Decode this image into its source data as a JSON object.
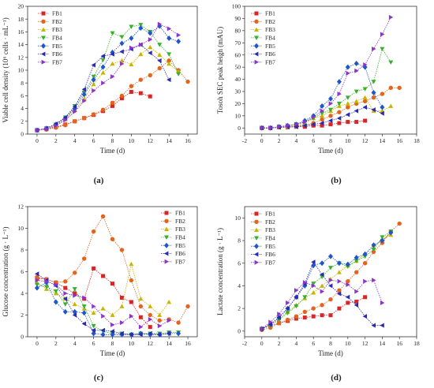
{
  "colors": {
    "FB1": "#d62728",
    "FB2": "#e2641e",
    "FB3": "#c8b400",
    "FB4": "#37b02c",
    "FB5": "#1f56c8",
    "FB6": "#2a2ab0",
    "FB7": "#8c34c9"
  },
  "markers": {
    "FB1": "square",
    "FB2": "circle",
    "FB3": "triangle-up",
    "FB4": "triangle-down",
    "FB5": "diamond",
    "FB6": "triangle-left",
    "FB7": "triangle-right"
  },
  "chart_data": [
    {
      "id": "a",
      "panel_label": "(a)",
      "type": "line",
      "xlabel": "Time (d)",
      "ylabel": "Viable cell density (10⁶ cells · mL⁻¹)",
      "xlim": [
        -1,
        17
      ],
      "ylim": [
        0,
        20
      ],
      "xticks": [
        0,
        2,
        4,
        6,
        8,
        10,
        12,
        14,
        16
      ],
      "yticks": [
        0,
        2,
        4,
        6,
        8,
        10,
        12,
        14,
        16,
        18,
        20
      ],
      "legend_position": "top-left",
      "series": [
        {
          "name": "FB1",
          "x": [
            0,
            1,
            2,
            3,
            4,
            5,
            6,
            7,
            8,
            9,
            10,
            11,
            12
          ],
          "y": [
            0.6,
            0.8,
            1.1,
            1.5,
            2.0,
            2.5,
            3.0,
            3.6,
            4.4,
            5.6,
            6.6,
            6.4,
            5.9
          ]
        },
        {
          "name": "FB2",
          "x": [
            0,
            1,
            2,
            3,
            4,
            5,
            6,
            7,
            8,
            9,
            10,
            11,
            12,
            13,
            14,
            15,
            16
          ],
          "y": [
            0.6,
            0.7,
            1.0,
            1.4,
            2.0,
            2.5,
            3.1,
            3.8,
            4.9,
            6.0,
            7.5,
            8.5,
            9.2,
            10.3,
            11.5,
            10.0,
            8.2
          ]
        },
        {
          "name": "FB3",
          "x": [
            0,
            1,
            2,
            3,
            4,
            5,
            6,
            7,
            8,
            9,
            10,
            11,
            12,
            13,
            14,
            15
          ],
          "y": [
            0.6,
            0.9,
            1.4,
            2.3,
            3.8,
            5.5,
            7.8,
            9.6,
            11.0,
            11.5,
            10.9,
            12.5,
            13.6,
            12.4,
            11.0,
            9.8
          ]
        },
        {
          "name": "FB4",
          "x": [
            0,
            1,
            2,
            3,
            4,
            5,
            6,
            7,
            8,
            9,
            10,
            11,
            12,
            13,
            14,
            15
          ],
          "y": [
            0.6,
            0.9,
            1.5,
            2.6,
            4.4,
            6.5,
            9.0,
            11.6,
            15.8,
            15.2,
            16.8,
            17.1,
            16.0,
            14.0,
            12.5,
            9.4
          ]
        },
        {
          "name": "FB5",
          "x": [
            0,
            1,
            2,
            3,
            4,
            5,
            6,
            7,
            8,
            9,
            10,
            11,
            12,
            13,
            14,
            15
          ],
          "y": [
            0.6,
            0.9,
            1.5,
            2.5,
            4.0,
            6.2,
            8.5,
            10.5,
            12.8,
            14.2,
            15.0,
            16.6,
            15.8,
            16.9,
            15.0,
            14.5
          ]
        },
        {
          "name": "FB6",
          "x": [
            0,
            1,
            2,
            3,
            4,
            5,
            6,
            7,
            8,
            9,
            10,
            11,
            12,
            13,
            14
          ],
          "y": [
            0.6,
            0.9,
            1.6,
            2.6,
            4.3,
            7.0,
            10.8,
            12.2,
            12.5,
            12.9,
            13.3,
            14.0,
            12.7,
            11.5,
            8.5
          ]
        },
        {
          "name": "FB7",
          "x": [
            0,
            1,
            2,
            3,
            4,
            5,
            6,
            7,
            8,
            9,
            10,
            11,
            12,
            13,
            14,
            15
          ],
          "y": [
            0.6,
            0.8,
            1.3,
            2.2,
            3.5,
            5.2,
            6.8,
            8.0,
            9.0,
            11.0,
            13.5,
            14.0,
            14.8,
            17.2,
            16.5,
            15.5
          ]
        }
      ]
    },
    {
      "id": "b",
      "panel_label": "(b)",
      "type": "line",
      "xlabel": "Time (d)",
      "ylabel": "Tosoh SEC peak heigh (mAU)",
      "xlim": [
        -2,
        18
      ],
      "ylim": [
        -5,
        100
      ],
      "xticks": [
        -2,
        0,
        2,
        4,
        6,
        8,
        10,
        12,
        14,
        16,
        18
      ],
      "yticks": [
        0,
        10,
        20,
        30,
        40,
        50,
        60,
        70,
        80,
        90,
        100
      ],
      "legend_position": "top-left",
      "series": [
        {
          "name": "FB1",
          "x": [
            0,
            1,
            2,
            3,
            4,
            5,
            6,
            7,
            8,
            9,
            10,
            11,
            12
          ],
          "y": [
            0,
            0,
            0.5,
            0.5,
            1,
            1,
            2,
            2,
            3,
            4,
            5,
            5,
            6
          ]
        },
        {
          "name": "FB2",
          "x": [
            0,
            1,
            2,
            3,
            4,
            5,
            6,
            7,
            8,
            9,
            10,
            11,
            12,
            13,
            14,
            15,
            16
          ],
          "y": [
            0,
            0,
            0.5,
            1,
            1.5,
            2.5,
            4,
            7,
            10,
            13,
            17,
            20,
            22,
            25,
            28,
            33,
            33
          ]
        },
        {
          "name": "FB3",
          "x": [
            0,
            1,
            2,
            3,
            4,
            5,
            6,
            7,
            8,
            9,
            10,
            11,
            12,
            13,
            14,
            15
          ],
          "y": [
            0,
            0,
            0.5,
            1,
            2,
            4,
            8,
            10,
            14,
            18,
            20,
            22,
            25,
            14,
            14,
            18
          ]
        },
        {
          "name": "FB4",
          "x": [
            0,
            1,
            2,
            3,
            4,
            5,
            6,
            7,
            8,
            9,
            10,
            11,
            12,
            13,
            14,
            15
          ],
          "y": [
            0,
            0,
            1,
            1.5,
            3,
            5,
            8,
            12,
            15,
            20,
            25,
            30,
            32,
            38,
            65,
            54
          ]
        },
        {
          "name": "FB5",
          "x": [
            0,
            1,
            2,
            3,
            4,
            5,
            6,
            7,
            8,
            9,
            10,
            11,
            12,
            13,
            14
          ],
          "y": [
            0,
            0,
            1,
            2,
            3,
            6,
            10,
            18,
            24,
            38,
            50,
            53,
            50,
            29,
            17
          ]
        },
        {
          "name": "FB6",
          "x": [
            0,
            1,
            2,
            3,
            4,
            5,
            6,
            7,
            8,
            9,
            10,
            11,
            12,
            13,
            14
          ],
          "y": [
            0,
            0,
            0.5,
            1,
            1,
            2,
            3,
            4,
            6,
            8,
            11,
            14,
            17,
            15,
            12
          ]
        },
        {
          "name": "FB7",
          "x": [
            0,
            1,
            2,
            3,
            4,
            5,
            6,
            7,
            8,
            9,
            10,
            11,
            12,
            13,
            14,
            15
          ],
          "y": [
            0,
            0,
            1,
            2,
            3,
            5,
            9,
            14,
            20,
            28,
            45,
            47,
            52,
            65,
            77,
            91
          ]
        }
      ]
    },
    {
      "id": "c",
      "panel_label": "(c)",
      "type": "line",
      "xlabel": "Time (d)",
      "ylabel": "Glucose concentration (g · L⁻¹)",
      "xlim": [
        -1,
        17
      ],
      "ylim": [
        0,
        12
      ],
      "xticks": [
        0,
        2,
        4,
        6,
        8,
        10,
        12,
        14,
        16
      ],
      "yticks": [
        0,
        2,
        4,
        6,
        8,
        10,
        12
      ],
      "legend_position": "top-right",
      "series": [
        {
          "name": "FB1",
          "x": [
            0,
            1,
            2,
            3,
            4,
            5,
            6,
            7,
            8,
            9,
            10,
            11,
            12
          ],
          "y": [
            5.4,
            5.3,
            5.0,
            4.5,
            4.0,
            3.5,
            6.3,
            5.6,
            4.9,
            3.6,
            3.2,
            1.8,
            0.9
          ]
        },
        {
          "name": "FB2",
          "x": [
            0,
            1,
            2,
            3,
            4,
            5,
            6,
            7,
            8,
            9,
            10,
            11,
            12,
            13,
            14,
            15,
            16
          ],
          "y": [
            5.5,
            5.3,
            5.0,
            5.1,
            5.9,
            7.2,
            9.7,
            11.1,
            9.0,
            8.0,
            5.2,
            2.8,
            2.0,
            1.5,
            1.6,
            1.3,
            2.8
          ]
        },
        {
          "name": "FB3",
          "x": [
            0,
            1,
            2,
            3,
            4,
            5,
            6,
            7,
            8,
            9,
            10,
            11,
            12,
            13,
            14
          ],
          "y": [
            5.0,
            4.4,
            4.0,
            3.5,
            3.0,
            2.6,
            2.2,
            2.6,
            2.0,
            2.8,
            6.7,
            3.5,
            2.8,
            2.0,
            3.2
          ]
        },
        {
          "name": "FB4",
          "x": [
            0,
            1,
            2,
            3,
            4,
            5,
            6,
            7,
            8,
            9,
            10,
            11,
            12,
            13,
            14,
            15
          ],
          "y": [
            4.8,
            4.6,
            4.2,
            3.0,
            4.4,
            2.8,
            1.0,
            0.5,
            0.3,
            0.3,
            0.2,
            0.3,
            0.3,
            0.3,
            0.4,
            0.4
          ]
        },
        {
          "name": "FB5",
          "x": [
            0,
            1,
            2,
            3,
            4,
            5,
            6,
            7,
            8,
            9,
            10,
            11,
            12,
            13,
            14,
            15
          ],
          "y": [
            4.5,
            5.0,
            3.2,
            2.3,
            2.3,
            2.2,
            0.3,
            0.2,
            0.2,
            0.2,
            0.2,
            0.3,
            0.2,
            0.2,
            0.3,
            0.3
          ]
        },
        {
          "name": "FB6",
          "x": [
            0,
            1,
            2,
            3,
            4,
            5,
            6,
            7,
            8,
            9,
            10,
            11,
            12,
            13,
            14
          ],
          "y": [
            5.8,
            5.2,
            4.7,
            3.5,
            2.0,
            1.2,
            0.6,
            0.6,
            0.5,
            0.3,
            0.2,
            0.2,
            0.3,
            0.2,
            0.3
          ]
        },
        {
          "name": "FB7",
          "x": [
            0,
            1,
            2,
            3,
            4,
            5,
            6,
            7,
            8,
            9,
            10,
            11,
            12,
            13,
            14
          ],
          "y": [
            5.2,
            5.1,
            4.8,
            4.0,
            3.8,
            3.6,
            2.8,
            1.9,
            1.1,
            1.3,
            1.9,
            0.9,
            1.6,
            1.0,
            1.5
          ]
        }
      ]
    },
    {
      "id": "d",
      "panel_label": "(d)",
      "type": "line",
      "xlabel": "Time (d)",
      "ylabel": "Lactate concentration (g · L⁻¹)",
      "xlim": [
        -2,
        18
      ],
      "ylim": [
        -0.5,
        11
      ],
      "xticks": [
        -2,
        0,
        2,
        4,
        6,
        8,
        10,
        12,
        14,
        16,
        18
      ],
      "yticks": [
        0,
        2,
        4,
        6,
        8,
        10
      ],
      "legend_position": "top-left",
      "series": [
        {
          "name": "FB1",
          "x": [
            0,
            1,
            2,
            3,
            4,
            5,
            6,
            7,
            8,
            9,
            10,
            11,
            12
          ],
          "y": [
            0.2,
            0.5,
            0.7,
            0.9,
            1.1,
            1.2,
            1.3,
            1.4,
            1.4,
            2.0,
            2.5,
            2.6,
            3.0
          ]
        },
        {
          "name": "FB2",
          "x": [
            0,
            1,
            2,
            3,
            4,
            5,
            6,
            7,
            8,
            9,
            10,
            11,
            12,
            13,
            14,
            15,
            16
          ],
          "y": [
            0.1,
            0.3,
            0.7,
            1.0,
            1.3,
            1.7,
            2.0,
            2.3,
            2.8,
            3.6,
            4.4,
            5.2,
            6.0,
            7.0,
            7.8,
            8.8,
            9.5
          ]
        },
        {
          "name": "FB3",
          "x": [
            0,
            1,
            2,
            3,
            4,
            5,
            6,
            7,
            8,
            9,
            10,
            11,
            12,
            13,
            14,
            15
          ],
          "y": [
            0.2,
            0.6,
            1.1,
            1.7,
            2.3,
            2.9,
            3.4,
            4.0,
            4.6,
            5.2,
            5.8,
            6.2,
            6.8,
            7.4,
            8.1,
            8.5
          ]
        },
        {
          "name": "FB4",
          "x": [
            0,
            1,
            2,
            3,
            4,
            5,
            6,
            7,
            8,
            9,
            10,
            11,
            12,
            13,
            14,
            15
          ],
          "y": [
            0.2,
            0.5,
            1.0,
            1.6,
            2.2,
            3.0,
            4.2,
            4.8,
            5.6,
            6.0,
            5.7,
            6.2,
            6.6,
            7.2,
            8.3,
            8.8
          ]
        },
        {
          "name": "FB5",
          "x": [
            0,
            1,
            2,
            3,
            4,
            5,
            6,
            7,
            8,
            9,
            10,
            11,
            12,
            13,
            14,
            15
          ],
          "y": [
            0.2,
            0.6,
            1.2,
            2.0,
            3.0,
            4.0,
            5.8,
            6.0,
            6.6,
            6.0,
            5.9,
            6.5,
            6.8,
            7.6,
            8.0,
            8.7
          ]
        },
        {
          "name": "FB6",
          "x": [
            0,
            1,
            2,
            3,
            4,
            5,
            6,
            7,
            8,
            9,
            10,
            11,
            12,
            13,
            14
          ],
          "y": [
            0.2,
            0.6,
            1.2,
            2.0,
            3.0,
            4.2,
            6.1,
            5.0,
            4.0,
            3.3,
            3.0,
            2.3,
            1.3,
            0.5,
            0.5
          ]
        },
        {
          "name": "FB7",
          "x": [
            0,
            1,
            2,
            3,
            4,
            5,
            6,
            7,
            8,
            9,
            10,
            11,
            12,
            13,
            14
          ],
          "y": [
            0.2,
            0.8,
            1.5,
            2.5,
            3.6,
            4.3,
            4.0,
            3.5,
            4.5,
            4.4,
            4.1,
            3.5,
            4.4,
            4.5,
            2.5
          ]
        }
      ]
    }
  ]
}
